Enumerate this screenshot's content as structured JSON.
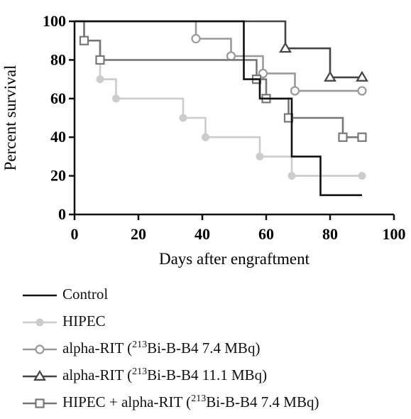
{
  "chart_data": {
    "type": "line",
    "xlabel": "Days after engraftment",
    "ylabel": "Percent survival",
    "xlim": [
      0,
      100
    ],
    "ylim": [
      0,
      100
    ],
    "x_ticks": [
      "0",
      "20",
      "40",
      "60",
      "80",
      "100"
    ],
    "y_ticks": [
      "0",
      "20",
      "40",
      "60",
      "80",
      "100"
    ],
    "grid": false,
    "legend_position": "bottom",
    "series": [
      {
        "name": "Control",
        "color": "#111111",
        "marker": "none",
        "steps": [
          [
            0,
            100
          ],
          [
            53,
            100
          ],
          [
            53,
            70
          ],
          [
            58,
            70
          ],
          [
            58,
            60
          ],
          [
            68,
            60
          ],
          [
            68,
            30
          ],
          [
            77,
            30
          ],
          [
            77,
            10
          ],
          [
            90,
            10
          ]
        ],
        "points": []
      },
      {
        "name": "HIPEC",
        "color": "#cccccc",
        "marker": "circle-filled",
        "steps": [
          [
            0,
            100
          ],
          [
            3,
            100
          ],
          [
            3,
            90
          ],
          [
            8,
            90
          ],
          [
            8,
            70
          ],
          [
            13,
            70
          ],
          [
            13,
            60
          ],
          [
            34,
            60
          ],
          [
            34,
            50
          ],
          [
            41,
            50
          ],
          [
            41,
            40
          ],
          [
            58,
            40
          ],
          [
            58,
            30
          ],
          [
            68,
            30
          ],
          [
            68,
            20
          ],
          [
            90,
            20
          ]
        ],
        "points": [
          [
            8,
            70
          ],
          [
            13,
            60
          ],
          [
            34,
            50
          ],
          [
            41,
            40
          ],
          [
            58,
            30
          ],
          [
            68,
            20
          ],
          [
            90,
            20
          ]
        ]
      },
      {
        "name": "alpha-RIT (213Bi-B-B4 7.4 MBq)",
        "color": "#999999",
        "marker": "circle-open",
        "steps": [
          [
            0,
            100
          ],
          [
            38,
            100
          ],
          [
            38,
            91
          ],
          [
            49,
            91
          ],
          [
            49,
            82
          ],
          [
            59,
            82
          ],
          [
            59,
            73
          ],
          [
            69,
            73
          ],
          [
            69,
            64
          ],
          [
            90,
            64
          ]
        ],
        "points": [
          [
            38,
            91
          ],
          [
            49,
            82
          ],
          [
            59,
            73
          ],
          [
            69,
            64
          ],
          [
            90,
            64
          ]
        ]
      },
      {
        "name": "alpha-RIT (213Bi-B-B4 11.1 MBq)",
        "color": "#444444",
        "marker": "triangle-open",
        "steps": [
          [
            0,
            100
          ],
          [
            66,
            100
          ],
          [
            66,
            86
          ],
          [
            80,
            86
          ],
          [
            80,
            71
          ],
          [
            90,
            71
          ]
        ],
        "points": [
          [
            66,
            86
          ],
          [
            80,
            71
          ],
          [
            90,
            71
          ]
        ]
      },
      {
        "name": "HIPEC + alpha-RIT (213Bi-B-B4 7.4 MBq)",
        "color": "#777777",
        "marker": "square-open",
        "steps": [
          [
            0,
            100
          ],
          [
            3,
            100
          ],
          [
            3,
            90
          ],
          [
            8,
            90
          ],
          [
            8,
            80
          ],
          [
            57,
            80
          ],
          [
            57,
            70
          ],
          [
            60,
            70
          ],
          [
            60,
            60
          ],
          [
            67,
            60
          ],
          [
            67,
            50
          ],
          [
            84,
            50
          ],
          [
            84,
            40
          ],
          [
            90,
            40
          ]
        ],
        "points": [
          [
            3,
            90
          ],
          [
            8,
            80
          ],
          [
            57,
            70
          ],
          [
            60,
            60
          ],
          [
            67,
            50
          ],
          [
            84,
            40
          ],
          [
            90,
            40
          ]
        ]
      }
    ],
    "legend": [
      {
        "pre": "Control",
        "sup": "",
        "post": ""
      },
      {
        "pre": "HIPEC",
        "sup": "",
        "post": ""
      },
      {
        "pre": "alpha-RIT  (",
        "sup": "213",
        "post": "Bi-B-B4 7.4 MBq)"
      },
      {
        "pre": "alpha-RIT  (",
        "sup": "213",
        "post": "Bi-B-B4 11.1 MBq)"
      },
      {
        "pre": "HIPEC + alpha-RIT  (",
        "sup": "213",
        "post": "Bi-B-B4 7.4 MBq)"
      }
    ]
  }
}
